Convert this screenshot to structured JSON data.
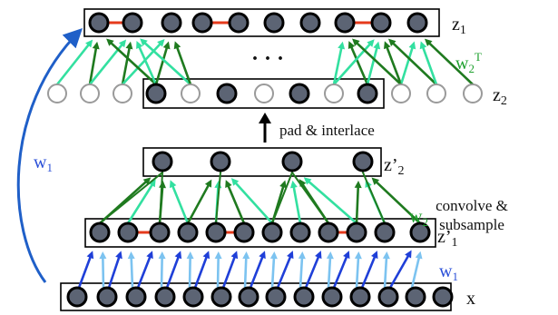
{
  "labels": {
    "z1": "z",
    "z1_sub": "1",
    "z2": "z",
    "z2_sub": "2",
    "zp2": "z’",
    "zp2_sub": "2",
    "zp1": "z’",
    "zp1_sub": "1",
    "x": "x",
    "ellipsis": "· · ·",
    "pad_interlace": "pad & interlace",
    "convolve_line1": "convolve &",
    "convolve_line2": "subsample",
    "w1_side": "w",
    "w1_side_sub": "1",
    "w1_lower": "w",
    "w1_lower_sub": "1",
    "w2_lower": "w",
    "w2_lower_sub": "2",
    "w2T": "w",
    "w2T_sub": "2",
    "w2T_sup": "T"
  },
  "colors": {
    "node_fill": "#5c6474",
    "node_stroke": "#000000",
    "node_light_stroke": "#9a9a9a",
    "link_red": "#e53a1c",
    "green_dark": "#1f7a1f",
    "green_light": "#33e0a0",
    "blue_dark": "#1f3fd8",
    "blue_light": "#7cc3f0",
    "w1_label": "#2a4fd8",
    "w2_label": "#1ea02e"
  }
}
